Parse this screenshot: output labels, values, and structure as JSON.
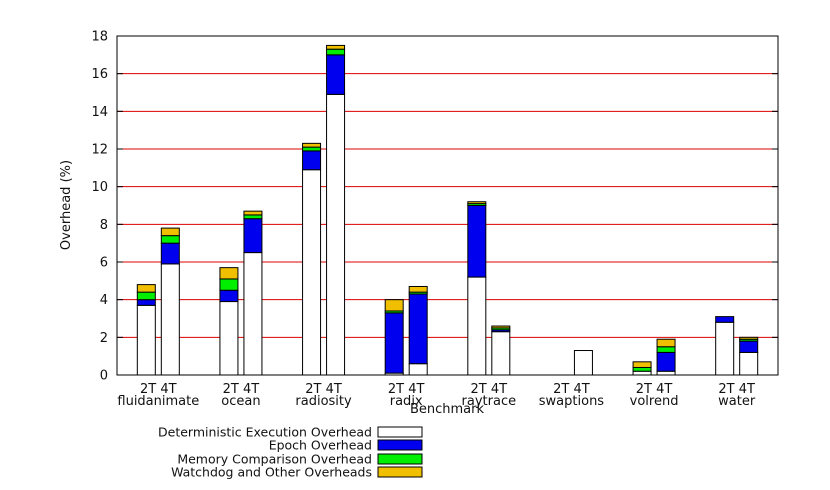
{
  "chart_data": {
    "type": "bar",
    "stacked": true,
    "xlabel": "Benchmark",
    "ylabel": "Overhead (%)",
    "ylim": [
      0,
      18
    ],
    "yticks": [
      0,
      2,
      4,
      6,
      8,
      10,
      12,
      14,
      16,
      18
    ],
    "grid": "horizontal",
    "legend_position": "bottom-center",
    "bar_labels": [
      "2T",
      "4T"
    ],
    "bar_label_text": "2T 4T",
    "categories": [
      "fluidanimate",
      "ocean",
      "radiosity",
      "radix",
      "raytrace",
      "swaptions",
      "volrend",
      "water"
    ],
    "series": [
      {
        "name": "Deterministic Execution Overhead",
        "color": "#ffffff",
        "values": [
          [
            3.7,
            5.9
          ],
          [
            3.9,
            6.5
          ],
          [
            10.9,
            14.9
          ],
          [
            0.1,
            0.6
          ],
          [
            5.2,
            2.3
          ],
          [
            0.0,
            1.3
          ],
          [
            0.2,
            0.2
          ],
          [
            2.8,
            1.2
          ]
        ]
      },
      {
        "name": "Epoch Overhead",
        "color": "#0000ee",
        "values": [
          [
            0.3,
            1.1
          ],
          [
            0.6,
            1.8
          ],
          [
            1.0,
            2.1
          ],
          [
            3.2,
            3.7
          ],
          [
            3.8,
            0.1
          ],
          [
            0.0,
            0.0
          ],
          [
            0.0,
            1.0
          ],
          [
            0.3,
            0.6
          ]
        ]
      },
      {
        "name": "Memory Comparison Overhead",
        "color": "#00ee00",
        "values": [
          [
            0.4,
            0.4
          ],
          [
            0.6,
            0.2
          ],
          [
            0.2,
            0.3
          ],
          [
            0.1,
            0.1
          ],
          [
            0.1,
            0.1
          ],
          [
            0.0,
            0.0
          ],
          [
            0.2,
            0.3
          ],
          [
            0.0,
            0.1
          ]
        ]
      },
      {
        "name": "Watchdog and Other Overheads",
        "color": "#f0c000",
        "values": [
          [
            0.4,
            0.4
          ],
          [
            0.6,
            0.2
          ],
          [
            0.2,
            0.2
          ],
          [
            0.6,
            0.3
          ],
          [
            0.1,
            0.1
          ],
          [
            0.0,
            0.0
          ],
          [
            0.3,
            0.4
          ],
          [
            0.0,
            0.1
          ]
        ]
      }
    ],
    "colors": {
      "gridline": "#dd0000",
      "axis": "#000000"
    }
  }
}
